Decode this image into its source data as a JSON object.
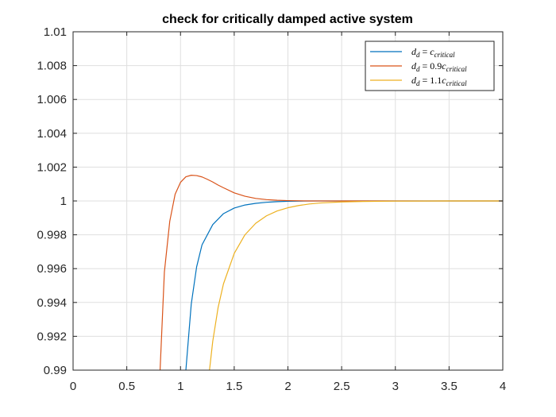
{
  "chart_data": {
    "type": "line",
    "title": "check for critically damped active system",
    "xlabel": "",
    "ylabel": "",
    "xlim": [
      0,
      4
    ],
    "ylim": [
      0.99,
      1.01
    ],
    "grid": true,
    "legend_placement": "top-right",
    "x_ticks": [
      "0",
      "0.5",
      "1",
      "1.5",
      "2",
      "2.5",
      "3",
      "3.5",
      "4"
    ],
    "y_ticks": [
      "0.99",
      "0.992",
      "0.994",
      "0.996",
      "0.998",
      "1",
      "1.002",
      "1.004",
      "1.006",
      "1.008",
      "1.01"
    ],
    "x_tick_values": [
      0,
      0.5,
      1,
      1.5,
      2,
      2.5,
      3,
      3.5,
      4
    ],
    "y_tick_values": [
      0.99,
      0.992,
      0.994,
      0.996,
      0.998,
      1,
      1.002,
      1.004,
      1.006,
      1.008,
      1.01
    ],
    "series": [
      {
        "name": "d_d = c_critical",
        "color": "#0072BD",
        "x": [
          1.05,
          1.1,
          1.15,
          1.2,
          1.3,
          1.4,
          1.5,
          1.6,
          1.7,
          1.8,
          1.9,
          2.0,
          2.2,
          2.5,
          3.0,
          3.5,
          4.0
        ],
        "y": [
          0.99,
          0.9939,
          0.9961,
          0.9974,
          0.9986,
          0.99925,
          0.99958,
          0.99976,
          0.99986,
          0.99992,
          0.99996,
          0.99998,
          1.0,
          1.0,
          1.0,
          1.0,
          1.0
        ]
      },
      {
        "name": "d_d = 0.9c_critical",
        "color": "#D95319",
        "x": [
          0.81,
          0.85,
          0.9,
          0.95,
          1.0,
          1.05,
          1.1,
          1.15,
          1.2,
          1.25,
          1.3,
          1.35,
          1.4,
          1.5,
          1.6,
          1.7,
          1.8,
          1.9,
          2.0,
          2.2,
          2.5,
          3.0,
          3.5,
          4.0
        ],
        "y": [
          0.99,
          0.9958,
          0.9988,
          1.0004,
          1.0011,
          1.00143,
          1.00152,
          1.0015,
          1.00142,
          1.00128,
          1.00112,
          1.00094,
          1.00078,
          1.00048,
          1.00028,
          1.00015,
          1.00008,
          1.00004,
          1.00002,
          1.0,
          1.0,
          1.0,
          1.0,
          1.0
        ]
      },
      {
        "name": "d_d = 1.1c_critical",
        "color": "#EDB120",
        "x": [
          1.27,
          1.3,
          1.35,
          1.4,
          1.5,
          1.6,
          1.7,
          1.8,
          1.9,
          2.0,
          2.1,
          2.2,
          2.3,
          2.5,
          2.7,
          3.0,
          3.5,
          4.0
        ],
        "y": [
          0.99,
          0.9917,
          0.9937,
          0.9951,
          0.9969,
          0.998,
          0.99868,
          0.99912,
          0.99941,
          0.9996,
          0.99973,
          0.99982,
          0.99988,
          0.99994,
          0.99997,
          0.99999,
          1.0,
          1.0
        ]
      }
    ]
  },
  "legend": {
    "entries": [
      {
        "lhs": "d",
        "lhs_sub": "d",
        "eq": " = ",
        "coef": "",
        "rhs": "c",
        "rhs_sub": "critical"
      },
      {
        "lhs": "d",
        "lhs_sub": "d",
        "eq": " = ",
        "coef": "0.9",
        "rhs": "c",
        "rhs_sub": "critical"
      },
      {
        "lhs": "d",
        "lhs_sub": "d",
        "eq": " = ",
        "coef": "1.1",
        "rhs": "c",
        "rhs_sub": "critical"
      }
    ]
  },
  "colors": {
    "axis": "#262626",
    "grid": "#dfdfdf",
    "background": "#ffffff"
  }
}
